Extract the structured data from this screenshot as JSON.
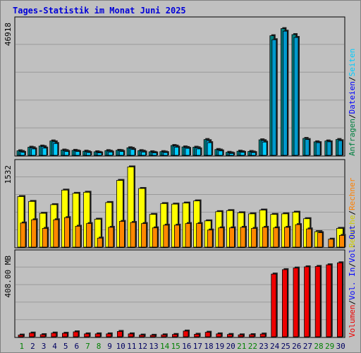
{
  "title": "Tages-Statistik im Monat Juni 2025",
  "colors": {
    "background": "#c0c0c0",
    "plot_bg": "#c0c0c0",
    "gridline": "#9a9a9a",
    "title": "#0000d8",
    "weekday_label": "#008000",
    "day_label": "#000060",
    "hits": "#00ccff",
    "files": "#0099cc",
    "pages": "#00aaee",
    "visits": "#ffff00",
    "sites": "#ff8800",
    "volume": "#ee0000",
    "kbin": "#0000ff",
    "kbout": "#0000ff"
  },
  "chart_data": [
    {
      "type": "bar",
      "name": "hits-files-pages",
      "x": [
        1,
        2,
        3,
        4,
        5,
        6,
        7,
        8,
        9,
        10,
        11,
        12,
        13,
        14,
        15,
        16,
        17,
        18,
        19,
        20,
        21,
        22,
        23,
        24,
        25,
        26,
        27,
        28,
        29,
        30
      ],
      "y_tick_label": "46918",
      "ylim": [
        0,
        46918
      ],
      "right_legend": [
        {
          "label": "Anfragen",
          "color": "#008040"
        },
        {
          "label": "Dateien",
          "color": "#0000ff"
        },
        {
          "label": "Seiten",
          "color": "#00ccff"
        }
      ],
      "series": [
        {
          "name": "Anfragen",
          "values": [
            1840,
            3100,
            3500,
            5300,
            2100,
            2000,
            1700,
            1500,
            1900,
            2000,
            2900,
            1900,
            1500,
            1550,
            3700,
            3200,
            3100,
            5800,
            2300,
            1300,
            1700,
            1600,
            5700,
            42300,
            44800,
            42700,
            6200,
            5000,
            5300,
            5800
          ]
        },
        {
          "name": "Dateien",
          "values": [
            1600,
            2900,
            3300,
            5000,
            1900,
            1800,
            1500,
            1300,
            1700,
            1900,
            2700,
            1700,
            1300,
            1400,
            3500,
            3000,
            2900,
            5400,
            2100,
            1100,
            1500,
            1400,
            5400,
            40900,
            43900,
            41700,
            5800,
            4700,
            5000,
            5400
          ]
        },
        {
          "name": "Seiten",
          "values": [
            1300,
            2500,
            2800,
            4400,
            1600,
            1600,
            1200,
            1100,
            1400,
            1600,
            2300,
            1400,
            1100,
            1200,
            3100,
            2700,
            2500,
            4700,
            1800,
            900,
            1300,
            1200,
            4900,
            0,
            0,
            0,
            0,
            0,
            0,
            0
          ]
        }
      ]
    },
    {
      "type": "bar",
      "name": "visits-sites",
      "x": [
        1,
        2,
        3,
        4,
        5,
        6,
        7,
        8,
        9,
        10,
        11,
        12,
        13,
        14,
        15,
        16,
        17,
        18,
        19,
        20,
        21,
        22,
        23,
        24,
        25,
        26,
        27,
        28,
        29,
        30
      ],
      "y_tick_label": "1532",
      "ylim": [
        0,
        1532
      ],
      "right_legend": [
        {
          "label": "Besuche",
          "color": "#cccc00"
        },
        {
          "label": "Rechner",
          "color": "#ff8000"
        }
      ],
      "series": [
        {
          "name": "Besuche",
          "values": [
            950,
            860,
            640,
            800,
            1070,
            1010,
            1030,
            530,
            840,
            1250,
            1500,
            1100,
            620,
            820,
            810,
            830,
            870,
            500,
            670,
            690,
            650,
            630,
            700,
            620,
            630,
            660,
            540,
            300,
            0,
            360
          ]
        },
        {
          "name": "Rechner",
          "values": [
            460,
            520,
            360,
            520,
            560,
            400,
            450,
            180,
            380,
            490,
            470,
            450,
            370,
            420,
            420,
            450,
            450,
            330,
            370,
            370,
            380,
            360,
            380,
            370,
            380,
            430,
            350,
            280,
            160,
            230
          ]
        }
      ]
    },
    {
      "type": "bar",
      "name": "volume",
      "x": [
        1,
        2,
        3,
        4,
        5,
        6,
        7,
        8,
        9,
        10,
        11,
        12,
        13,
        14,
        15,
        16,
        17,
        18,
        19,
        20,
        21,
        22,
        23,
        24,
        25,
        26,
        27,
        28,
        29,
        30
      ],
      "y_tick_label": "408.00 MB",
      "ylim": [
        0,
        408
      ],
      "right_legend": [
        {
          "label": "Volumen",
          "color": "#ee0000"
        },
        {
          "label": "Vol. In",
          "color": "#0000ff"
        },
        {
          "label": "Vol. Out",
          "color": "#0000ff"
        }
      ],
      "series": [
        {
          "name": "Volumen",
          "values": [
            12,
            22,
            14,
            22,
            21,
            28,
            18,
            18,
            18,
            30,
            18,
            12,
            11,
            13,
            15,
            32,
            16,
            26,
            18,
            15,
            13,
            14,
            17,
            316,
            338,
            346,
            352,
            354,
            362,
            372
          ]
        }
      ]
    }
  ],
  "x_labels": [
    {
      "day": "1",
      "weekend": true
    },
    {
      "day": "2",
      "weekend": false
    },
    {
      "day": "3",
      "weekend": false
    },
    {
      "day": "4",
      "weekend": false
    },
    {
      "day": "5",
      "weekend": false
    },
    {
      "day": "6",
      "weekend": false
    },
    {
      "day": "7",
      "weekend": true
    },
    {
      "day": "8",
      "weekend": true
    },
    {
      "day": "9",
      "weekend": false
    },
    {
      "day": "10",
      "weekend": false
    },
    {
      "day": "11",
      "weekend": false
    },
    {
      "day": "12",
      "weekend": false
    },
    {
      "day": "13",
      "weekend": false
    },
    {
      "day": "14",
      "weekend": true
    },
    {
      "day": "15",
      "weekend": true
    },
    {
      "day": "16",
      "weekend": false
    },
    {
      "day": "17",
      "weekend": false
    },
    {
      "day": "18",
      "weekend": false
    },
    {
      "day": "19",
      "weekend": false
    },
    {
      "day": "20",
      "weekend": false
    },
    {
      "day": "21",
      "weekend": true
    },
    {
      "day": "22",
      "weekend": true
    },
    {
      "day": "23",
      "weekend": false
    },
    {
      "day": "24",
      "weekend": false
    },
    {
      "day": "25",
      "weekend": false
    },
    {
      "day": "26",
      "weekend": false
    },
    {
      "day": "27",
      "weekend": false
    },
    {
      "day": "28",
      "weekend": true
    },
    {
      "day": "29",
      "weekend": true
    },
    {
      "day": "30",
      "weekend": false
    }
  ]
}
